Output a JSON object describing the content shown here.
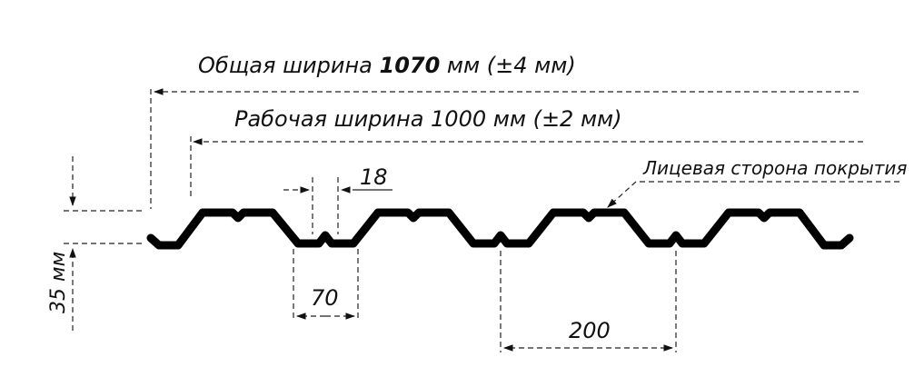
{
  "title": {
    "total_width_prefix": "Общая ширина ",
    "total_width_value": "1070",
    "total_width_suffix": " мм (±4 мм)",
    "working_width": "Рабочая ширина 1000 мм (±2 мм)"
  },
  "dimensions": {
    "rib_width": "18",
    "bottom_width": "70",
    "pitch": "200",
    "height": "35 мм"
  },
  "callout": {
    "face_side": "Лицевая сторона покрытия"
  }
}
